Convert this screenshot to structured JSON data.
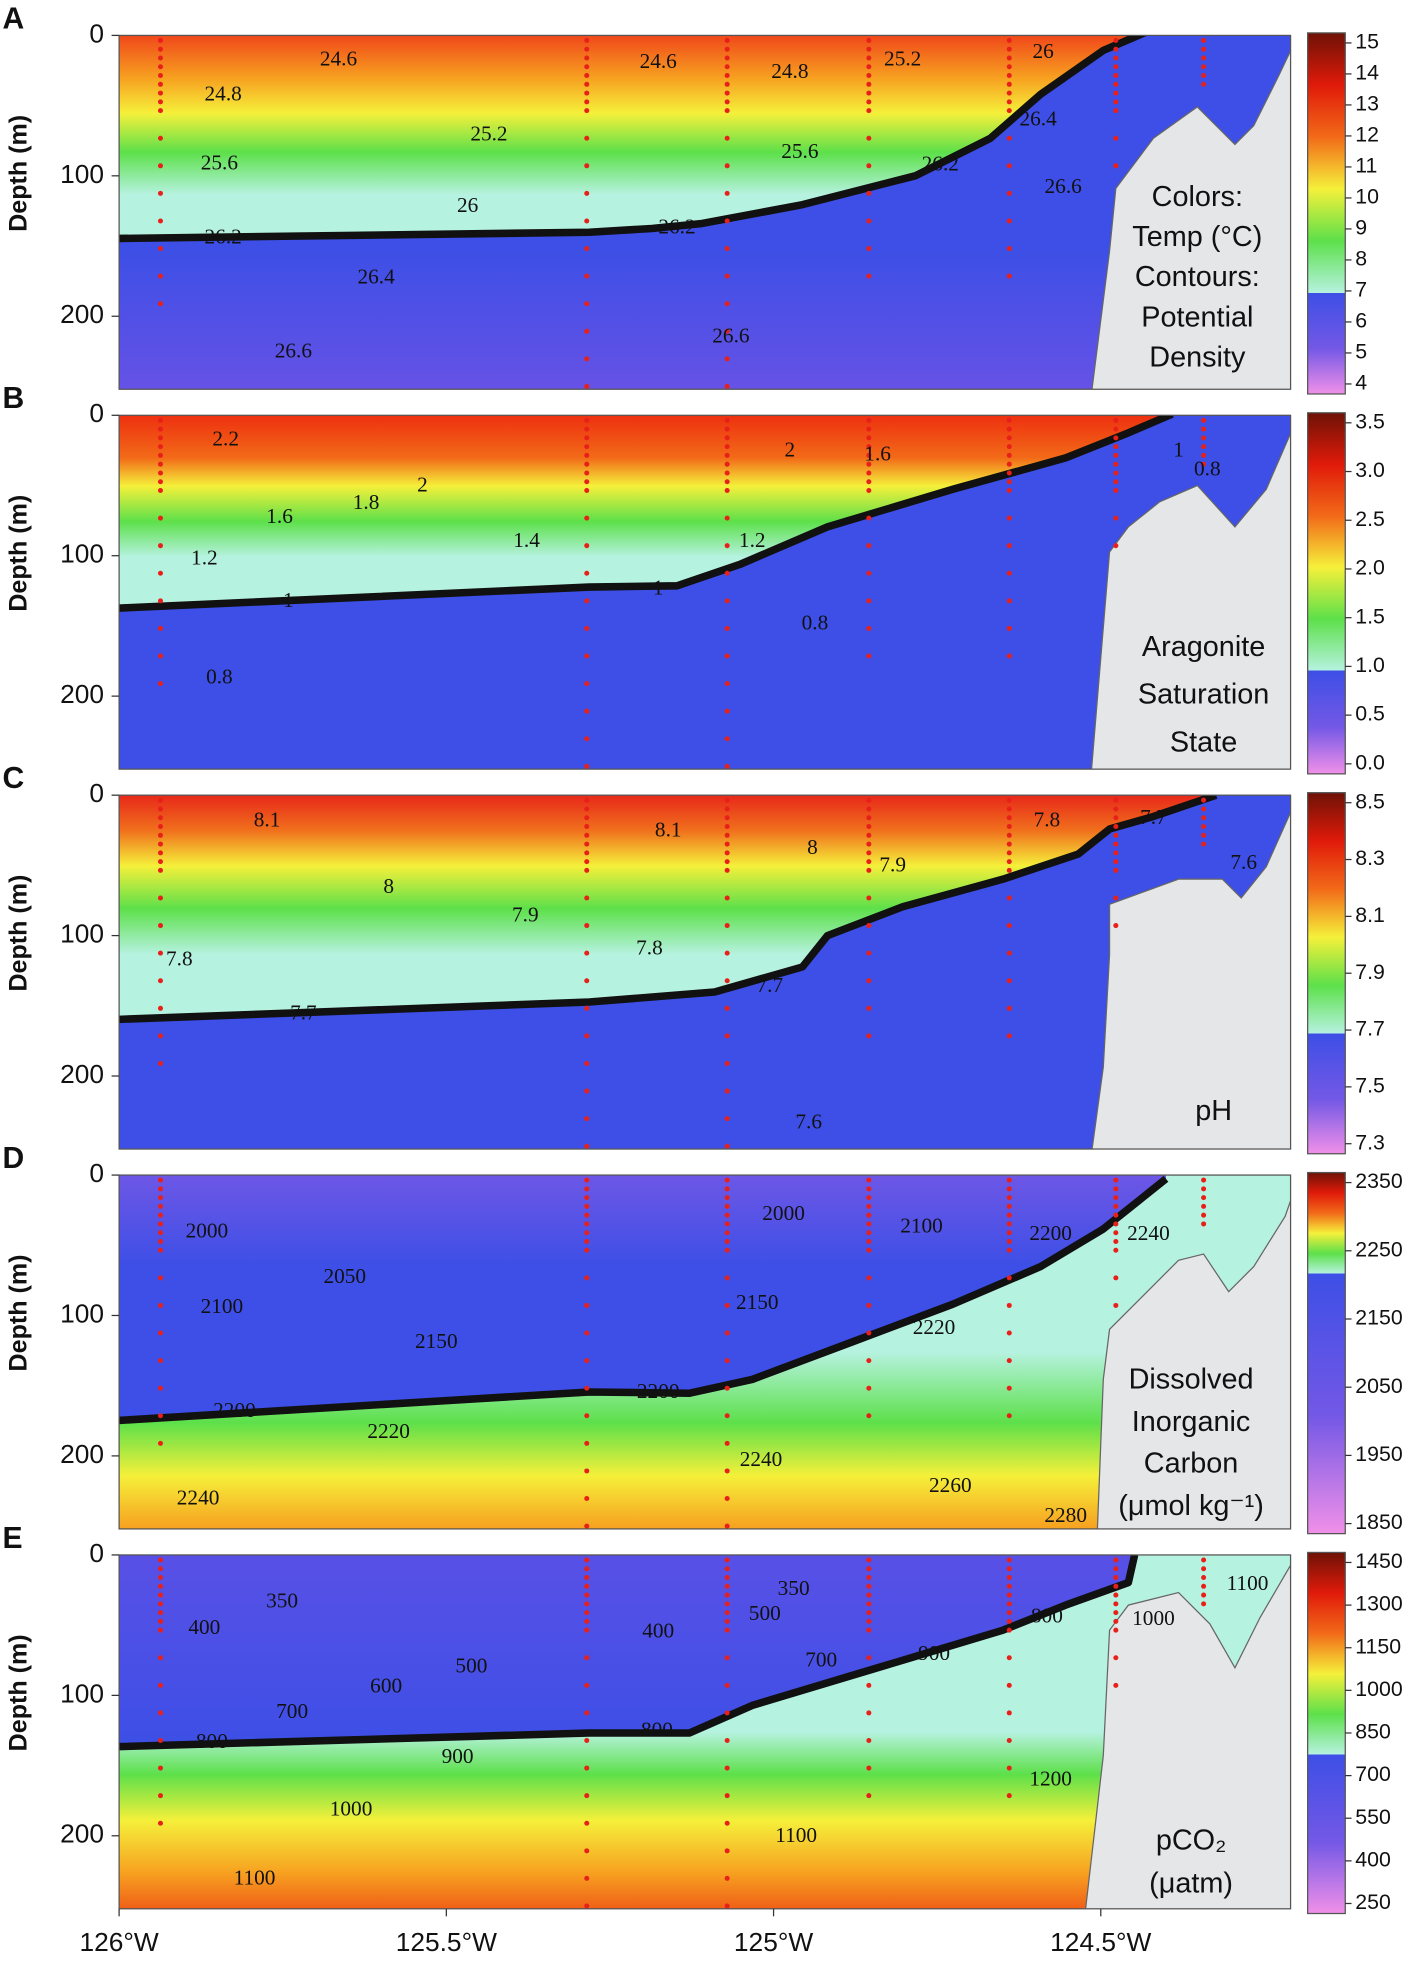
{
  "chart_data": [
    {
      "type": "contour",
      "panel": "A",
      "ylabel": "Depth (m)",
      "ylim": [
        0,
        252
      ],
      "yticks": [
        0,
        100,
        200
      ],
      "xlim": [
        -126,
        -124.21
      ],
      "clim": [
        4,
        15
      ],
      "cticks": [
        15,
        14,
        13,
        12,
        11,
        10,
        9,
        8,
        7,
        6,
        5,
        4
      ],
      "contour_labels": [
        24.6,
        24.6,
        24.8,
        24.8,
        25.2,
        26,
        25.2,
        25.6,
        25.6,
        26.2,
        26.4,
        26,
        26.2,
        26.2,
        26.6,
        26.4,
        26.6,
        26.6
      ],
      "legend_text": [
        "Colors:",
        "Temp (°C)",
        "Contours:",
        "Potential",
        "Density"
      ]
    },
    {
      "type": "contour",
      "panel": "B",
      "ylabel": "Depth (m)",
      "ylim": [
        0,
        252
      ],
      "yticks": [
        0,
        100,
        200
      ],
      "xlim": [
        -126,
        -124.21
      ],
      "clim": [
        0,
        3.5
      ],
      "cticks": [
        3.5,
        {
          "value": 3,
          "label": "3.0"
        },
        2.5,
        {
          "value": 2,
          "label": "2.0"
        },
        1.5,
        {
          "value": 1,
          "label": "1.0"
        },
        0.5,
        {
          "value": 0,
          "label": "0.0"
        }
      ],
      "contour_labels": [
        2.2,
        2,
        1.8,
        1.6,
        2,
        1.6,
        1,
        0.8,
        1.4,
        1.2,
        1.2,
        1,
        1,
        0.8,
        0.8
      ],
      "legend_text": [
        "Aragonite",
        "Saturation",
        "State"
      ]
    },
    {
      "type": "contour",
      "panel": "C",
      "ylabel": "Depth (m)",
      "ylim": [
        0,
        252
      ],
      "yticks": [
        0,
        100,
        200
      ],
      "xlim": [
        -126,
        -124.21
      ],
      "clim": [
        7.3,
        8.5
      ],
      "cticks": [
        8.5,
        8.3,
        8.1,
        7.9,
        7.7,
        7.5,
        7.3
      ],
      "contour_labels": [
        8.1,
        8.1,
        8,
        7.9,
        7.8,
        7.7,
        7.6,
        8,
        7.9,
        7.8,
        7.8,
        7.7,
        7.7,
        7.6
      ],
      "legend_text": [
        "pH"
      ]
    },
    {
      "type": "contour",
      "panel": "D",
      "ylabel": "Depth (m)",
      "ylim": [
        0,
        252
      ],
      "yticks": [
        0,
        100,
        200
      ],
      "xlim": [
        -126,
        -124.21
      ],
      "clim": [
        1850,
        2350
      ],
      "cticks": [
        2350,
        2250,
        2150,
        2050,
        1950,
        1850
      ],
      "contour_labels": [
        2000,
        2100,
        2200,
        2240,
        2000,
        2050,
        2100,
        2150,
        2150,
        2220,
        2200,
        2200,
        2220,
        2240,
        2260,
        2240,
        2280
      ],
      "legend_text": [
        "Dissolved",
        "Inorganic",
        "Carbon",
        "(μmol kg⁻¹)"
      ]
    },
    {
      "type": "contour",
      "panel": "E",
      "ylabel": "Depth (m)",
      "ylim": [
        0,
        252
      ],
      "yticks": [
        0,
        100,
        200
      ],
      "xlim": [
        -126,
        -124.21
      ],
      "clim": [
        250,
        1450
      ],
      "cticks": [
        1450,
        1300,
        1150,
        1000,
        850,
        700,
        550,
        400,
        250
      ],
      "contour_labels": [
        350,
        350,
        400,
        400,
        500,
        800,
        1000,
        1100,
        700,
        900,
        500,
        600,
        700,
        800,
        800,
        900,
        1000,
        1200,
        1100,
        1100
      ],
      "legend_text": [
        "pCO₂",
        "(μatm)"
      ],
      "xticks": [
        {
          "value": -126,
          "label": "126°W"
        },
        {
          "value": -125.5,
          "label": "125.5°W"
        },
        {
          "value": -125,
          "label": "125°W"
        },
        {
          "value": -124.5,
          "label": "124.5°W"
        }
      ]
    }
  ]
}
